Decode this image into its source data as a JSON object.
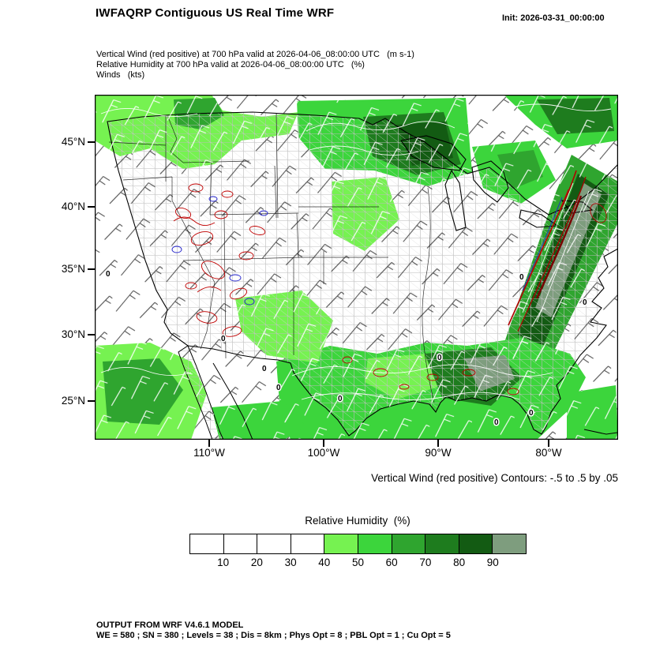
{
  "page": {
    "title": "IWFAQRP Contiguous US Real Time WRF",
    "init_label": "Init: 2026-03-31_00:00:00"
  },
  "subtitles": {
    "line1": "Vertical Wind (red positive) at 700 hPa valid at 2026-04-06_08:00:00 UTC   (m s-1)",
    "line2": "Relative Humidity at 700 hPa valid at 2026-04-06_08:00:00 UTC   (%)",
    "line3": "Winds   (kts)"
  },
  "axes": {
    "y_ticks": [
      "45°N",
      "40°N",
      "35°N",
      "30°N",
      "25°N"
    ],
    "x_ticks": [
      "110°W",
      "100°W",
      "90°W",
      "80°W"
    ]
  },
  "map": {
    "zero_label": "0"
  },
  "captions": {
    "contours": "Vertical Wind (red positive) Contours: -.5 to .5 by .05"
  },
  "legend": {
    "title": "Relative Humidity  (%)",
    "tick_labels": [
      "10",
      "20",
      "30",
      "40",
      "50",
      "60",
      "70",
      "80",
      "90"
    ],
    "colors": [
      "#FFFFFF",
      "#FFFFFF",
      "#FFFFFF",
      "#FFFFFF",
      "#76F251",
      "#3CD53C",
      "#2FA52F",
      "#1E7C1E",
      "#135B13",
      "#7E9D7E"
    ]
  },
  "footer": {
    "line1": "OUTPUT FROM WRF V4.6.1 MODEL",
    "line2": "WE = 580 ; SN = 380 ; Levels = 38 ; Dis = 8km ; Phys Opt = 8 ; PBL Opt = 1 ; Cu Opt = 5"
  },
  "chart_data": {
    "type": "heatmap",
    "title": "IWFAQRP Contiguous US Real Time WRF",
    "region": "Contiguous US",
    "init_time": "2026-03-31_00:00:00",
    "valid_time": "2026-04-06_08:00:00 UTC",
    "fields": [
      {
        "name": "Vertical Wind (red positive)",
        "level": "700 hPa",
        "units": "m s-1",
        "style": "contours",
        "contour_min": -0.5,
        "contour_max": 0.5,
        "contour_interval": 0.05,
        "positive_color": "#C00000",
        "negative_color": "#2222CC",
        "zero_contour_label": "0"
      },
      {
        "name": "Relative Humidity",
        "level": "700 hPa",
        "units": "%",
        "style": "filled_shading",
        "levels": [
          10,
          20,
          30,
          40,
          50,
          60,
          70,
          80,
          90
        ],
        "colors": [
          "#FFFFFF",
          "#FFFFFF",
          "#FFFFFF",
          "#FFFFFF",
          "#76F251",
          "#3CD53C",
          "#2FA52F",
          "#1E7C1E",
          "#135B13",
          "#7E9D7E"
        ]
      },
      {
        "name": "Winds",
        "units": "kts",
        "style": "wind_barbs"
      }
    ],
    "x_axis": {
      "ticks": [
        "110°W",
        "100°W",
        "90°W",
        "80°W"
      ]
    },
    "y_axis": {
      "ticks": [
        "45°N",
        "40°N",
        "35°N",
        "30°N",
        "25°N"
      ]
    },
    "legend_position": "bottom",
    "grid": false,
    "model": "WRF V4.6.1",
    "model_config": {
      "WE": 580,
      "SN": 380,
      "Levels": 38,
      "Dis": "8km",
      "Phys_Opt": 8,
      "PBL_Opt": 1,
      "Cu_Opt": 5
    }
  }
}
